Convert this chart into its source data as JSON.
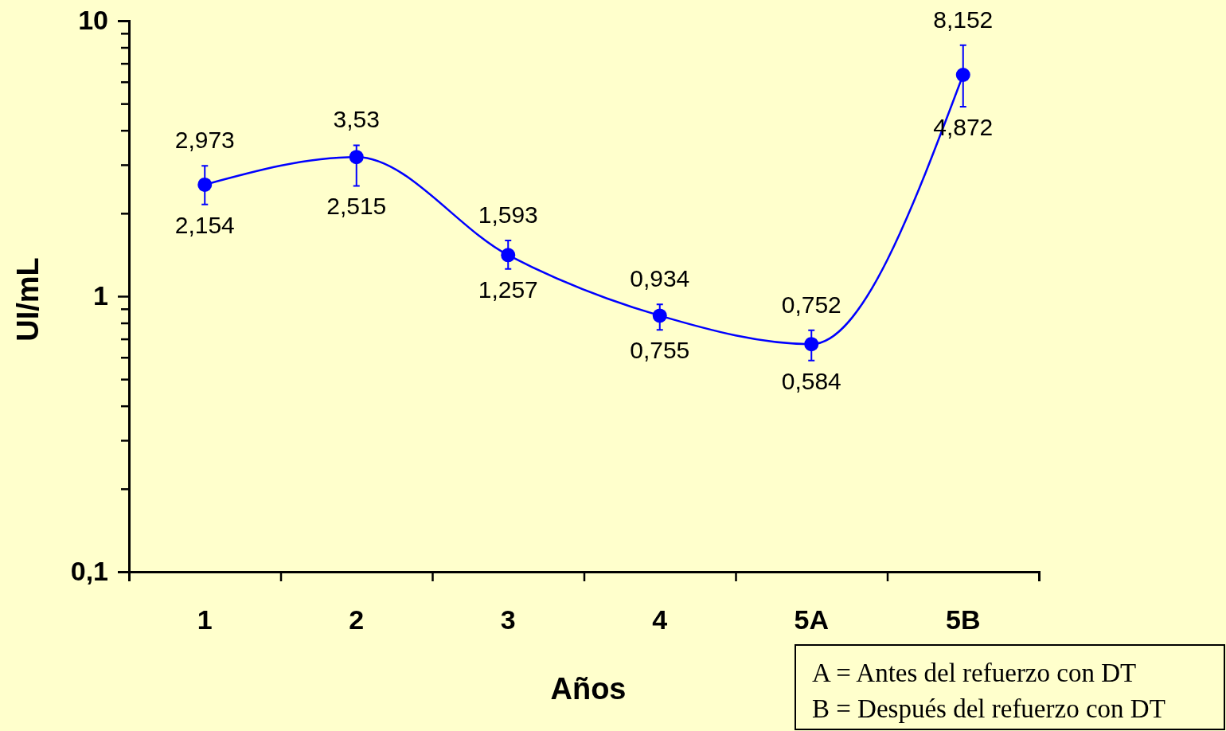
{
  "chart_data": {
    "type": "line",
    "xlabel": "Años",
    "ylabel": "UI/mL",
    "categories": [
      "1",
      "2",
      "3",
      "4",
      "5A",
      "5B"
    ],
    "series": [
      {
        "color": "#0000ff",
        "values": [
          2.54,
          3.2,
          1.41,
          0.85,
          0.67,
          6.36
        ],
        "errors": [
          [
            2.154,
            2.973
          ],
          [
            2.515,
            3.53
          ],
          [
            1.257,
            1.593
          ],
          [
            0.755,
            0.934
          ],
          [
            0.584,
            0.752
          ],
          [
            4.872,
            8.152
          ]
        ]
      }
    ],
    "log": true,
    "ylim": [
      0.1,
      10
    ],
    "yticks": [
      {
        "value": 0.1,
        "label": "0,1"
      },
      {
        "value": 0.2,
        "label": null
      },
      {
        "value": 0.3,
        "label": null
      },
      {
        "value": 0.4,
        "label": null
      },
      {
        "value": 0.5,
        "label": null
      },
      {
        "value": 0.6,
        "label": null
      },
      {
        "value": 0.7,
        "label": null
      },
      {
        "value": 0.8,
        "label": null
      },
      {
        "value": 0.9,
        "label": null
      },
      1,
      {
        "value": 2,
        "label": null
      },
      {
        "value": 3,
        "label": null
      },
      {
        "value": 4,
        "label": null
      },
      {
        "value": 5,
        "label": null
      },
      {
        "value": 6,
        "label": null
      },
      {
        "value": 7,
        "label": null
      },
      {
        "value": 8,
        "label": null
      },
      {
        "value": 9,
        "label": null
      },
      10
    ],
    "marker": "circle",
    "line_style": "solid",
    "grid": false,
    "annotations": [
      {
        "text": "2,973",
        "x": "1",
        "y": 2.973
      },
      {
        "text": "2,154",
        "x": "1",
        "y": 2.154
      },
      {
        "text": "3,53",
        "x": "2",
        "y": 3.53
      },
      {
        "text": "2,515",
        "x": "2",
        "y": 2.515
      },
      {
        "text": "1,593",
        "x": "3",
        "y": 1.593
      },
      {
        "text": "1,257",
        "x": "3",
        "y": 1.257
      },
      {
        "text": "0,934",
        "x": "4",
        "y": 0.934
      },
      {
        "text": "0,755",
        "x": "4",
        "y": 0.755
      },
      {
        "text": "0,752",
        "x": "5A",
        "y": 0.752
      },
      {
        "text": "0,584",
        "x": "5A",
        "y": 0.584
      },
      {
        "text": "8,152",
        "x": "5B",
        "y": 8.152
      },
      {
        "text": "4,872",
        "x": "5B",
        "y": 4.872
      },
      "A = Antes del refuerzo con DT",
      "B = Después del refuerzo con DT"
    ]
  }
}
